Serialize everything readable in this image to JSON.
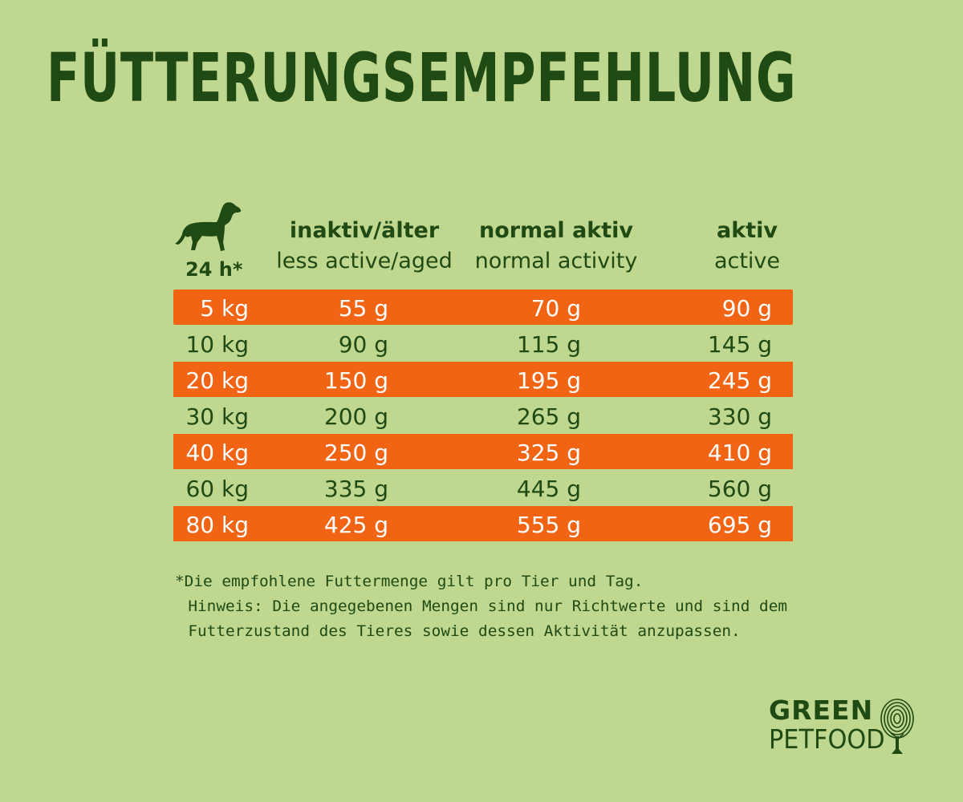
{
  "title": "Fütterungsempfehlung",
  "hours_label": "24 h*",
  "columns": [
    {
      "de": "inaktiv/älter",
      "en": "less active/aged"
    },
    {
      "de": "normal aktiv",
      "en": "normal activity"
    },
    {
      "de": "aktiv",
      "en": "active"
    }
  ],
  "rows": [
    {
      "weight": "5 kg",
      "inactive": "55 g",
      "normal": "70 g",
      "active": "90 g"
    },
    {
      "weight": "10 kg",
      "inactive": "90 g",
      "normal": "115 g",
      "active": "145 g"
    },
    {
      "weight": "20 kg",
      "inactive": "150 g",
      "normal": "195 g",
      "active": "245 g"
    },
    {
      "weight": "30 kg",
      "inactive": "200 g",
      "normal": "265 g",
      "active": "330 g"
    },
    {
      "weight": "40 kg",
      "inactive": "250 g",
      "normal": "325 g",
      "active": "410 g"
    },
    {
      "weight": "60 kg",
      "inactive": "335 g",
      "normal": "445 g",
      "active": "560 g"
    },
    {
      "weight": "80 kg",
      "inactive": "425 g",
      "normal": "555 g",
      "active": "695 g"
    }
  ],
  "footnote": {
    "line1": "*Die empfohlene Futtermenge gilt pro Tier und Tag.",
    "line2": "Hinweis: Die angegebenen Mengen sind nur Richtwerte und sind dem",
    "line3": "Futterzustand des Tieres sowie dessen Aktivität anzupassen."
  },
  "logo": {
    "line1": "GREEN",
    "line2": "PETFOOD"
  },
  "colors": {
    "background": "#c0d78f",
    "text": "#1f4a14",
    "highlight_row": "#f06414"
  },
  "icons": {
    "dog": "dog-silhouette-icon",
    "logo_mark": "fingerprint-tree-icon"
  }
}
